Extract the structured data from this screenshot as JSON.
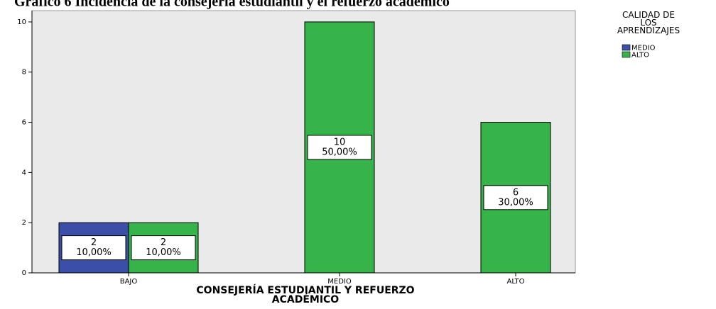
{
  "chart_data": {
    "type": "bar",
    "title": "Gráfico 6 Incidencia de la consejería estudiantil y el refuerzo académico",
    "x_label": "CONSEJERÍA ESTUDIANTIL Y REFUERZO ACADÉMICO",
    "legend_title": "CALIDAD DE LOS APRENDIZAJES",
    "legend": "top-right",
    "categories": [
      "BAJO",
      "MEDIO",
      "ALTO"
    ],
    "series": [
      {
        "name": "MEDIO",
        "color": "#3b4fa8",
        "values": [
          2,
          null,
          null
        ],
        "percents": [
          10,
          null,
          null
        ],
        "percent_labels": [
          "10,00%",
          null,
          null
        ]
      },
      {
        "name": "ALTO",
        "color": "#37b449",
        "values": [
          2,
          10,
          6
        ],
        "percents": [
          10,
          50,
          30
        ],
        "percent_labels": [
          "10,00%",
          "50,00%",
          "30,00%"
        ]
      }
    ],
    "ylim": [
      0,
      10.45
    ],
    "yticks": [
      0,
      2,
      4,
      6,
      8,
      10
    ]
  }
}
